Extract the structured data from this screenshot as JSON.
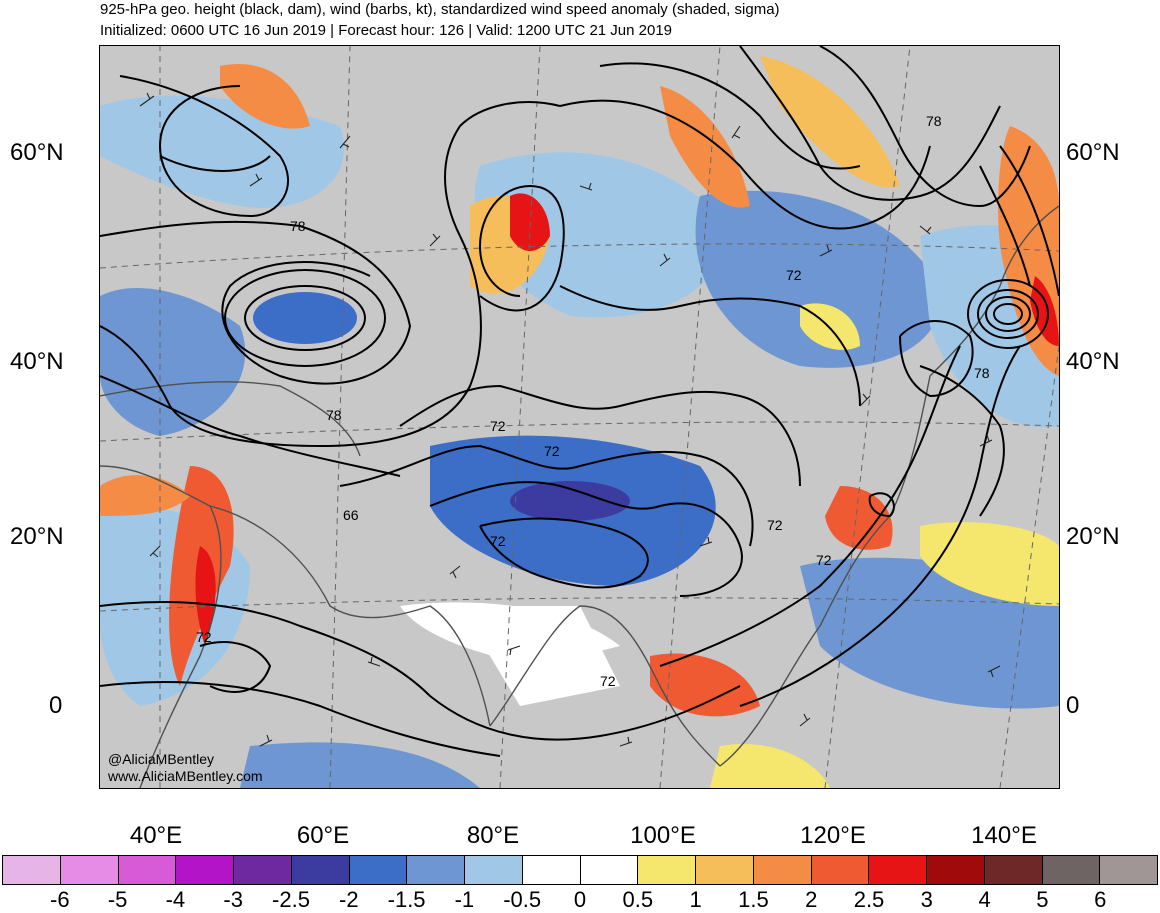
{
  "header": {
    "title": "925-hPa geo. height (black, dam), wind (barbs, kt), standardized wind speed anomaly (shaded, sigma)",
    "subtitle": "Initialized: 0600 UTC 16 Jun 2019 | Forecast hour: 126 | Valid: 1200 UTC 21 Jun 2019"
  },
  "map": {
    "credit_handle": "@AliciaMBentley",
    "credit_site": "www.AliciaMBentley.com",
    "lat_labels": [
      "60°N",
      "40°N",
      "20°N",
      "0"
    ],
    "lon_labels": [
      "40°E",
      "60°E",
      "80°E",
      "100°E",
      "120°E",
      "140°E"
    ],
    "contour_labels": [
      "78",
      "78",
      "78",
      "78",
      "72",
      "72",
      "72",
      "72",
      "72",
      "72",
      "72",
      "72",
      "66"
    ]
  },
  "colorbar": {
    "labels": [
      "-6",
      "-5",
      "-4",
      "-3",
      "-2.5",
      "-2",
      "-1.5",
      "-1",
      "-0.5",
      "0",
      "0.5",
      "1",
      "1.5",
      "2",
      "2.5",
      "3",
      "4",
      "5",
      "6"
    ],
    "colors": [
      "#e6b4e6",
      "#e68ce6",
      "#d75ad7",
      "#b414c8",
      "#6e28a0",
      "#3c3ca0",
      "#3c6ec8",
      "#6e96d2",
      "#a0c8e6",
      "#ffffff",
      "#ffffff",
      "#f5e66e",
      "#f5be5a",
      "#f58c46",
      "#f05a32",
      "#e61414",
      "#a00a0a",
      "#6e2828",
      "#6e6464",
      "#a09696"
    ]
  }
}
